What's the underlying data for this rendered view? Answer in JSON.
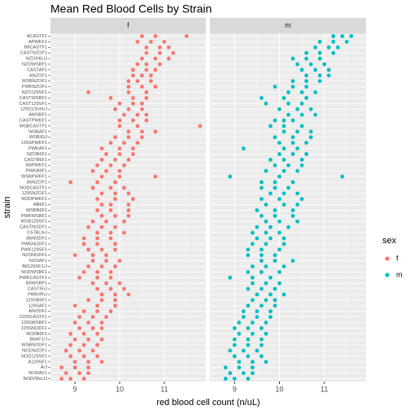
{
  "chart_data": {
    "type": "faceted_dot",
    "title": "Mean Red Blood Cells by Strain",
    "x_label": "red blood cell count (n/uL)",
    "y_label": "strain",
    "legend_title": "sex",
    "categories": [
      "ACASTF1",
      "APWKF1",
      "B6CASTF1",
      "CASTNZOF1",
      "NZO/HILtJ",
      "NZOWSBF1",
      "CASTAF1",
      "ANZOF1",
      "WSBNZOF1",
      "PWKNZOF1",
      "NZO129SF1",
      "CASTWSBF1",
      "CAST129SF1",
      "129S1/SvImJ",
      "AWSBF1",
      "CASTPWKF1",
      "WSBCASTF1",
      "WSBAF1",
      "WSB/EiJ",
      "129SPWKF1",
      "PWKAF1",
      "NZOB6F1",
      "CASTB6F1",
      "B6PWKF1",
      "PWKB6F1",
      "WSBPWKF1",
      "B6NZOF1",
      "NODCASTF1",
      "129SNZOF1",
      "NODPWKF1",
      "AB6F1",
      "WSBB6F1",
      "PWKWSBF1",
      "WSB129SF1",
      "CASTNODF1",
      "C57BL/6J",
      "B6NODF1",
      "PWKNODF1",
      "PWK129SF1",
      "NZONODF1",
      "NZOAF1",
      "B6129SF1/J",
      "NODWSBF1",
      "PWKCASTF1",
      "B6WSBF1",
      "CAST/EiJ",
      "PWK/PhJ",
      "129SB6F1",
      "129SAF1",
      "ANODF1",
      "129SCASTF1",
      "129SWSBF1",
      "129SNODF1",
      "NODB6F1",
      "B6AF1/J",
      "WSBNODF1",
      "NODNZOF1",
      "NOD129SF1",
      "A129SF1",
      "A/J",
      "NODAF1",
      "NOD/ShiLtJ"
    ],
    "xlim": [
      8.45,
      11.93
    ],
    "xticks": [
      9,
      10,
      11
    ],
    "grid": true,
    "series": [
      {
        "name": "f",
        "color": "#f8766d",
        "values": [
          [
            10.5,
            10.8,
            11.5
          ],
          [
            10.4,
            10.7,
            11.0
          ],
          [
            10.6,
            10.9,
            11.1
          ],
          [
            10.6,
            10.9,
            11.2
          ],
          [
            10.5,
            10.8,
            11.1
          ],
          [
            10.4,
            10.6,
            10.9
          ],
          [
            10.3,
            10.6,
            10.8
          ],
          [
            10.3,
            10.5,
            10.7
          ],
          [
            10.2,
            10.4,
            10.7
          ],
          [
            10.2,
            10.5,
            10.8
          ],
          [
            9.3,
            10.2,
            10.6
          ],
          [
            9.8,
            10.3,
            10.6
          ],
          [
            10.0,
            10.3,
            10.5
          ],
          [
            9.9,
            10.2,
            10.5
          ],
          [
            10.1,
            10.4,
            10.6
          ],
          [
            10.0,
            10.3,
            10.6
          ],
          [
            10.0,
            10.4,
            11.8
          ],
          [
            10.2,
            10.5,
            10.8
          ],
          [
            9.9,
            10.2,
            10.5
          ],
          [
            9.8,
            10.1,
            10.4
          ],
          [
            9.6,
            10.0,
            10.3
          ],
          [
            9.7,
            10.0,
            10.3
          ],
          [
            9.6,
            9.9,
            10.2
          ],
          [
            9.5,
            9.8,
            10.1
          ],
          [
            9.4,
            9.7,
            10.0
          ],
          [
            9.6,
            10.0,
            10.8
          ],
          [
            8.9,
            9.5,
            9.9
          ],
          [
            9.4,
            9.8,
            10.1
          ],
          [
            9.6,
            9.9,
            10.2
          ],
          [
            9.5,
            9.9,
            10.3
          ],
          [
            9.6,
            9.8,
            10.2
          ],
          [
            9.5,
            9.8,
            10.2
          ],
          [
            9.6,
            9.9,
            10.2
          ],
          [
            9.4,
            9.7,
            10.1
          ],
          [
            9.3,
            9.6,
            9.9
          ],
          [
            9.5,
            9.8,
            10.1
          ],
          [
            9.2,
            9.5,
            9.8
          ],
          [
            9.2,
            9.5,
            9.9
          ],
          [
            9.3,
            9.6,
            9.9
          ],
          [
            9.0,
            9.4,
            9.7
          ],
          [
            9.4,
            9.7,
            10.0
          ],
          [
            9.3,
            9.6,
            9.9
          ],
          [
            9.2,
            9.5,
            9.8
          ],
          [
            9.1,
            9.5,
            9.8
          ],
          [
            9.4,
            9.7,
            10.0
          ],
          [
            9.5,
            9.8,
            10.1
          ],
          [
            9.6,
            9.9,
            10.2
          ],
          [
            9.3,
            9.6,
            9.9
          ],
          [
            9.0,
            9.5,
            9.9
          ],
          [
            9.2,
            9.5,
            9.8
          ],
          [
            9.1,
            9.4,
            9.7
          ],
          [
            9.0,
            9.3,
            9.6
          ],
          [
            9.1,
            9.4,
            9.6
          ],
          [
            8.9,
            9.2,
            9.5
          ],
          [
            9.0,
            9.3,
            9.6
          ],
          [
            8.9,
            9.2,
            9.5
          ],
          [
            8.8,
            9.1,
            9.4
          ],
          [
            8.9,
            9.2,
            9.5
          ],
          [
            9.0,
            9.3,
            9.6
          ],
          [
            8.7,
            9.0,
            9.3
          ],
          [
            8.8,
            9.1,
            9.3
          ],
          [
            8.7,
            8.9,
            9.2
          ]
        ]
      },
      {
        "name": "m",
        "color": "#00bfc4",
        "values": [
          [
            11.2,
            11.4,
            11.6
          ],
          [
            10.9,
            11.2,
            11.5
          ],
          [
            10.8,
            11.1,
            11.3
          ],
          [
            10.6,
            10.9,
            11.2
          ],
          [
            10.3,
            10.6,
            10.9
          ],
          [
            10.4,
            10.7,
            11.0
          ],
          [
            10.5,
            10.8,
            11.1
          ],
          [
            10.6,
            10.9,
            11.1
          ],
          [
            10.3,
            10.6,
            10.9
          ],
          [
            9.9,
            10.3,
            10.6
          ],
          [
            10.2,
            10.5,
            10.8
          ],
          [
            9.6,
            10.1,
            10.6
          ],
          [
            9.7,
            10.2,
            10.5
          ],
          [
            10.0,
            10.4,
            10.7
          ],
          [
            10.2,
            10.5,
            10.8
          ],
          [
            9.9,
            10.1,
            10.3
          ],
          [
            9.8,
            10.1,
            10.5
          ],
          [
            10.1,
            10.4,
            10.7
          ],
          [
            9.9,
            10.3,
            10.7
          ],
          [
            10.0,
            10.3,
            10.6
          ],
          [
            9.2,
            10.1,
            10.4
          ],
          [
            10.0,
            10.3,
            10.6
          ],
          [
            9.8,
            10.1,
            10.5
          ],
          [
            9.9,
            10.2,
            10.5
          ],
          [
            9.7,
            10.1,
            10.4
          ],
          [
            8.9,
            10.0,
            11.4
          ],
          [
            9.6,
            9.9,
            10.3
          ],
          [
            9.6,
            9.9,
            10.2
          ],
          [
            9.8,
            10.1,
            10.4
          ],
          [
            9.6,
            10.0,
            10.5
          ],
          [
            9.7,
            10.1,
            10.4
          ],
          [
            9.5,
            9.9,
            10.3
          ],
          [
            9.6,
            9.9,
            10.3
          ],
          [
            9.7,
            10.0,
            10.4
          ],
          [
            9.5,
            9.8,
            10.2
          ],
          [
            9.4,
            9.7,
            10.0
          ],
          [
            9.5,
            9.8,
            10.1
          ],
          [
            9.4,
            9.7,
            10.1
          ],
          [
            9.3,
            9.6,
            10.0
          ],
          [
            9.3,
            9.6,
            9.9
          ],
          [
            9.6,
            9.9,
            10.3
          ],
          [
            9.4,
            9.7,
            10.1
          ],
          [
            9.3,
            9.6,
            10.0
          ],
          [
            8.9,
            9.4,
            9.8
          ],
          [
            9.4,
            9.7,
            10.0
          ],
          [
            9.3,
            9.6,
            9.9
          ],
          [
            9.5,
            9.8,
            10.1
          ],
          [
            9.4,
            9.7,
            9.9
          ],
          [
            9.3,
            9.6,
            9.9
          ],
          [
            9.2,
            9.5,
            9.8
          ],
          [
            9.2,
            9.5,
            9.8
          ],
          [
            9.1,
            9.4,
            9.7
          ],
          [
            9.0,
            9.3,
            9.6
          ],
          [
            9.1,
            9.4,
            9.7
          ],
          [
            9.0,
            9.3,
            9.6
          ],
          [
            9.0,
            9.3,
            9.6
          ],
          [
            8.9,
            9.2,
            9.5
          ],
          [
            9.0,
            9.3,
            9.6
          ],
          [
            9.1,
            9.4,
            9.7
          ],
          [
            8.8,
            9.1,
            9.4
          ],
          [
            8.9,
            9.2,
            9.4
          ],
          [
            8.8,
            9.0,
            9.3
          ]
        ]
      }
    ]
  }
}
